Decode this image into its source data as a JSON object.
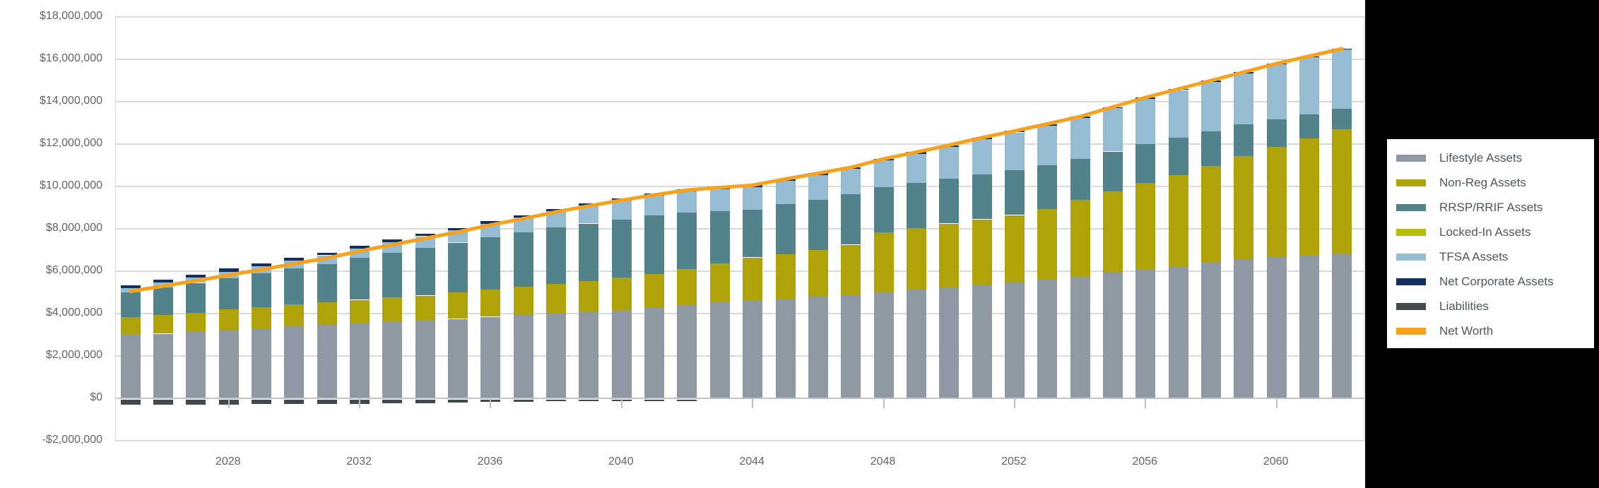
{
  "chart_data": {
    "type": "bar",
    "subtype": "stacked-bars-with-net-worth-line",
    "title": "",
    "ylabel": "",
    "xlabel": "",
    "ylim": [
      -2000000,
      18000000
    ],
    "y_step": 2000000,
    "grid": true,
    "legend_position": "right",
    "years": [
      2025,
      2026,
      2027,
      2028,
      2029,
      2030,
      2031,
      2032,
      2033,
      2034,
      2035,
      2036,
      2037,
      2038,
      2039,
      2040,
      2041,
      2042,
      2043,
      2044,
      2045,
      2046,
      2047,
      2048,
      2049,
      2050,
      2051,
      2052,
      2053,
      2054,
      2055,
      2056,
      2057,
      2058,
      2059,
      2060,
      2061,
      2062
    ],
    "series": [
      {
        "name": "Lifestyle Assets",
        "role": "bar",
        "color": "#8E99A3",
        "values": [
          3000000,
          3050000,
          3130000,
          3240000,
          3300000,
          3410000,
          3470000,
          3550000,
          3610000,
          3690000,
          3750000,
          3850000,
          3920000,
          4000000,
          4080000,
          4180000,
          4280000,
          4400000,
          4520000,
          4650000,
          4710000,
          4790000,
          4900000,
          5020000,
          5120000,
          5250000,
          5350000,
          5500000,
          5600000,
          5780000,
          5920000,
          6060000,
          6250000,
          6420000,
          6550000,
          6680000,
          6780000,
          6850000
        ]
      },
      {
        "name": "Non-Reg Assets",
        "role": "bar",
        "color": "#B0A30A",
        "values": [
          820000,
          870000,
          900000,
          960000,
          1010000,
          1020000,
          1070000,
          1100000,
          1150000,
          1160000,
          1240000,
          1280000,
          1340000,
          1400000,
          1460000,
          1520000,
          1580000,
          1700000,
          1850000,
          2000000,
          2100000,
          2200000,
          2350000,
          2800000,
          2900000,
          3000000,
          3100000,
          3150000,
          3350000,
          3600000,
          3850000,
          4100000,
          4300000,
          4550000,
          4900000,
          5180000,
          5500000,
          5850000
        ]
      },
      {
        "name": "RRSP/RRIF Assets",
        "role": "bar",
        "color": "#52828A",
        "values": [
          1190000,
          1310000,
          1420000,
          1480000,
          1590000,
          1700000,
          1800000,
          1970000,
          2120000,
          2260000,
          2360000,
          2480000,
          2570000,
          2660000,
          2710000,
          2750000,
          2760000,
          2660000,
          2450000,
          2260000,
          2350000,
          2390000,
          2370000,
          2150000,
          2150000,
          2120000,
          2130000,
          2130000,
          2050000,
          1920000,
          1880000,
          1830000,
          1750000,
          1630000,
          1500000,
          1300000,
          1130000,
          960000
        ]
      },
      {
        "name": "Locked-In Assets",
        "role": "bar",
        "color": "#B5BE09",
        "values": [
          0,
          0,
          0,
          0,
          0,
          0,
          0,
          0,
          0,
          0,
          0,
          0,
          0,
          0,
          0,
          0,
          0,
          0,
          0,
          0,
          0,
          0,
          0,
          0,
          0,
          0,
          0,
          0,
          0,
          0,
          0,
          0,
          0,
          0,
          0,
          0,
          0,
          0
        ]
      },
      {
        "name": "TFSA Assets",
        "role": "bar",
        "color": "#96BCD3",
        "values": [
          200000,
          230000,
          260000,
          300000,
          330000,
          370000,
          410000,
          450000,
          490000,
          540000,
          580000,
          630000,
          700000,
          770000,
          840000,
          900000,
          960000,
          1020000,
          1040000,
          1060000,
          1100000,
          1150000,
          1200000,
          1250000,
          1370000,
          1500000,
          1650000,
          1770000,
          1880000,
          1940000,
          2040000,
          2150000,
          2250000,
          2350000,
          2400000,
          2600000,
          2700000,
          2800000
        ]
      },
      {
        "name": "Net Corporate Assets",
        "role": "bar",
        "color": "#122F5D",
        "values": [
          140000,
          140000,
          140000,
          140000,
          130000,
          130000,
          130000,
          130000,
          120000,
          120000,
          120000,
          120000,
          110000,
          110000,
          110000,
          100000,
          100000,
          100000,
          90000,
          90000,
          90000,
          90000,
          80000,
          80000,
          80000,
          80000,
          70000,
          70000,
          70000,
          60000,
          60000,
          60000,
          50000,
          50000,
          50000,
          40000,
          40000,
          40000
        ]
      },
      {
        "name": "Liabilities",
        "role": "bar-negative",
        "color": "#43484C",
        "values": [
          -300000,
          -300000,
          -300000,
          -300000,
          -280000,
          -280000,
          -260000,
          -250000,
          -240000,
          -220000,
          -200000,
          -180000,
          -160000,
          -140000,
          -120000,
          -100000,
          -80000,
          -50000,
          0,
          0,
          0,
          0,
          0,
          0,
          0,
          0,
          0,
          0,
          0,
          0,
          0,
          0,
          0,
          0,
          0,
          0,
          0,
          0
        ]
      },
      {
        "name": "Net Worth",
        "role": "line",
        "color": "#F6A21C",
        "values": [
          5050000,
          5300000,
          5550000,
          5820000,
          6080000,
          6350000,
          6620000,
          6950000,
          7250000,
          7550000,
          7850000,
          8180000,
          8480000,
          8800000,
          9080000,
          9350000,
          9600000,
          9830000,
          9950000,
          10060000,
          10350000,
          10620000,
          10900000,
          11300000,
          11620000,
          11950000,
          12300000,
          12620000,
          12950000,
          13300000,
          13750000,
          14200000,
          14600000,
          15000000,
          15400000,
          15800000,
          16150000,
          16500000
        ]
      }
    ],
    "y_axis": {
      "tick_labels": [
        "$18,000,000",
        "$16,000,000",
        "$14,000,000",
        "$12,000,000",
        "$10,000,000",
        "$8,000,000",
        "$6,000,000",
        "$4,000,000",
        "$2,000,000",
        "$0",
        "-$2,000,000"
      ]
    },
    "x_axis": {
      "labeled_years": [
        2028,
        2032,
        2036,
        2040,
        2044,
        2048,
        2052,
        2056,
        2060
      ],
      "tick_labels": [
        "2028",
        "2032",
        "2036",
        "2040",
        "2044",
        "2048",
        "2052",
        "2056",
        "2060"
      ]
    },
    "colors": {
      "gridline": "#D9D9D9",
      "axis_text": "#646464",
      "legend_text": "#50565C",
      "side_panel": "#000000",
      "legend_card": "#FFFFFF"
    }
  }
}
